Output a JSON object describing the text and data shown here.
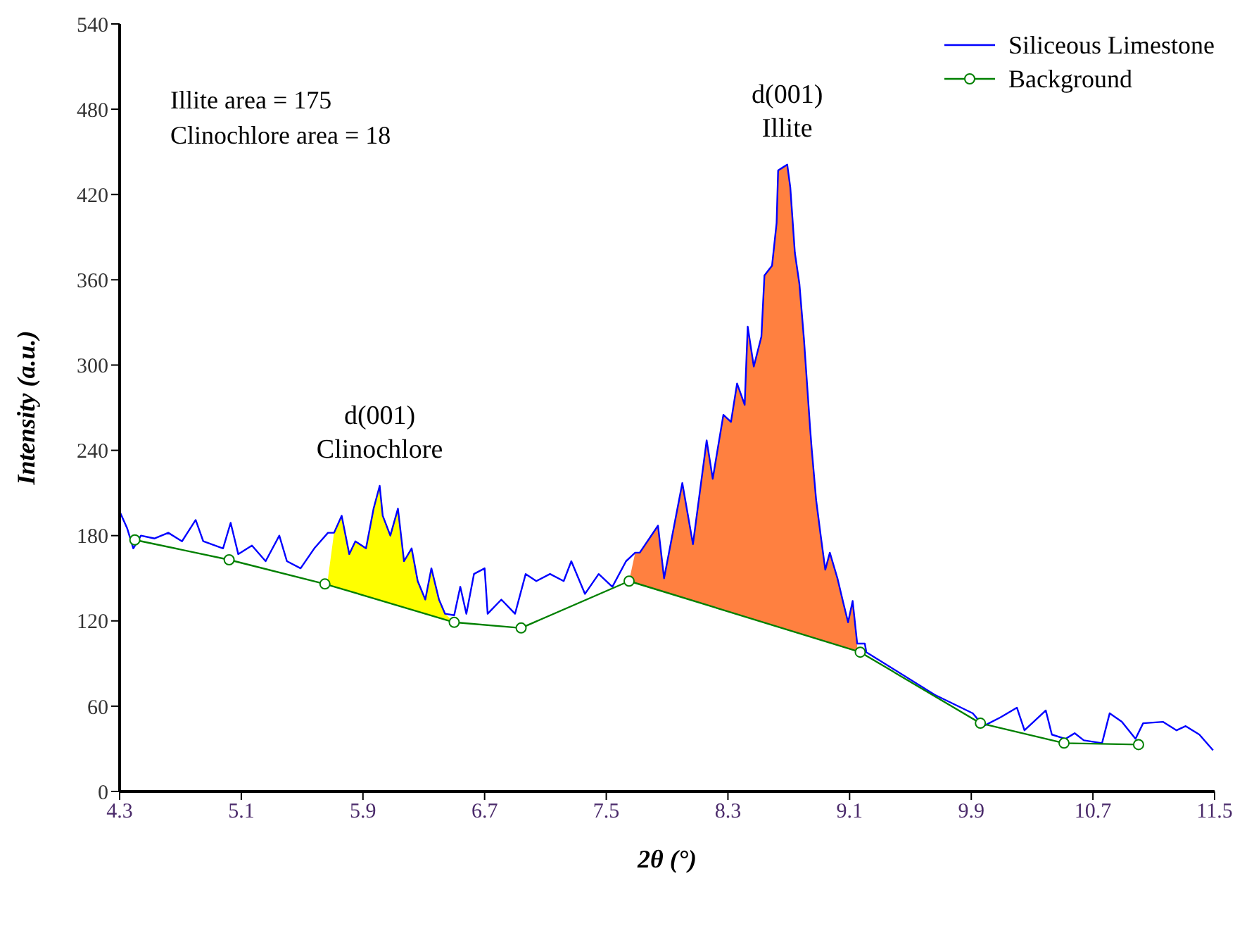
{
  "chart_data": {
    "type": "line",
    "xlabel": "2θ (°)",
    "ylabel": "Intensity (a.u.)",
    "xlim": [
      4.3,
      11.5
    ],
    "xticks": [
      4.3,
      5.1,
      5.9,
      6.7,
      7.5,
      8.3,
      9.1,
      9.9,
      10.7,
      11.5
    ],
    "ylim": [
      0,
      540
    ],
    "yticks": [
      0,
      60,
      120,
      180,
      240,
      300,
      360,
      420,
      480,
      540
    ],
    "legend": "top right",
    "annotations": [
      "Illite area = 175",
      "Clinochlore area = 18",
      {
        "text": "d(001)\nIllite",
        "x": 8.69,
        "y": 441
      },
      {
        "text": "d(001)\nClinochlore",
        "x": 6.01,
        "y": 215
      }
    ],
    "series": [
      {
        "type": "area",
        "color": "#ffff00",
        "x": [
          5.67,
          5.71,
          5.76,
          5.81,
          5.85,
          5.92,
          5.97,
          6.01,
          6.03,
          6.08,
          6.13,
          6.17,
          6.22,
          6.26,
          6.31,
          6.35,
          6.4,
          6.44,
          6.5
        ],
        "values": [
          150,
          182,
          194,
          167,
          176,
          171,
          199,
          215,
          194,
          180,
          199,
          162,
          171,
          148,
          135,
          157,
          135,
          125,
          119
        ]
      },
      {
        "type": "area",
        "color": "#ff8040",
        "x": [
          7.65,
          7.69,
          7.72,
          7.84,
          7.88,
          8.0,
          8.07,
          8.16,
          8.2,
          8.27,
          8.32,
          8.36,
          8.41,
          8.43,
          8.47,
          8.52,
          8.54,
          8.59,
          8.62,
          8.63,
          8.66,
          8.69,
          8.71,
          8.74,
          8.77,
          8.8,
          8.84,
          8.85,
          8.88,
          8.91,
          8.94,
          8.97,
          9.02,
          9.06,
          9.09,
          9.12,
          9.15
        ],
        "values": [
          148,
          168,
          168,
          187,
          150,
          217,
          174,
          247,
          220,
          265,
          260,
          287,
          272,
          327,
          299,
          320,
          363,
          370,
          400,
          437,
          439,
          441,
          425,
          379,
          357,
          318,
          256,
          242,
          205,
          180,
          156,
          168,
          150,
          132,
          119,
          134,
          104
        ]
      },
      {
        "name": "Siliceous Limestone",
        "color": "#0000ff",
        "marker": "none",
        "x": [
          4.3,
          4.35,
          4.39,
          4.44,
          4.53,
          4.62,
          4.71,
          4.8,
          4.85,
          4.98,
          5.03,
          5.08,
          5.17,
          5.26,
          5.35,
          5.4,
          5.49,
          5.58,
          5.67,
          5.71,
          5.76,
          5.81,
          5.85,
          5.92,
          5.97,
          6.01,
          6.03,
          6.08,
          6.13,
          6.17,
          6.22,
          6.26,
          6.31,
          6.35,
          6.4,
          6.44,
          6.5,
          6.54,
          6.58,
          6.63,
          6.7,
          6.72,
          6.81,
          6.9,
          6.97,
          7.04,
          7.13,
          7.22,
          7.27,
          7.36,
          7.45,
          7.54,
          7.63,
          7.69,
          7.72,
          7.84,
          7.88,
          8.0,
          8.07,
          8.16,
          8.2,
          8.27,
          8.32,
          8.36,
          8.41,
          8.43,
          8.47,
          8.52,
          8.54,
          8.59,
          8.62,
          8.63,
          8.66,
          8.69,
          8.71,
          8.74,
          8.77,
          8.8,
          8.84,
          8.85,
          8.88,
          8.91,
          8.94,
          8.97,
          9.02,
          9.06,
          9.09,
          9.12,
          9.15,
          9.2,
          9.21,
          9.66,
          9.91,
          9.98,
          10.09,
          10.2,
          10.25,
          10.39,
          10.43,
          10.52,
          10.58,
          10.64,
          10.76,
          10.81,
          10.89,
          10.98,
          11.03,
          11.16,
          11.25,
          11.31,
          11.4,
          11.49
        ],
        "values": [
          197,
          185,
          171,
          180,
          178,
          182,
          176,
          191,
          176,
          171,
          189,
          167,
          173,
          162,
          180,
          162,
          157,
          171,
          182,
          182,
          194,
          167,
          176,
          171,
          199,
          215,
          194,
          180,
          199,
          162,
          171,
          148,
          135,
          157,
          135,
          125,
          124,
          144,
          125,
          153,
          157,
          125,
          135,
          125,
          153,
          148,
          153,
          148,
          162,
          139,
          153,
          144,
          162,
          168,
          168,
          187,
          150,
          217,
          174,
          247,
          220,
          265,
          260,
          287,
          272,
          327,
          299,
          320,
          363,
          370,
          400,
          437,
          439,
          441,
          425,
          379,
          357,
          318,
          256,
          242,
          205,
          180,
          156,
          168,
          150,
          132,
          119,
          134,
          104,
          104,
          98,
          68,
          55,
          46,
          52,
          59,
          43,
          57,
          40,
          37,
          41,
          36,
          34,
          55,
          49,
          37,
          48,
          49,
          43,
          46,
          40,
          29
        ]
      },
      {
        "name": "Background",
        "color": "#008000",
        "marker": "circle",
        "x": [
          4.4,
          5.02,
          5.65,
          6.5,
          6.94,
          7.65,
          9.17,
          9.96,
          10.51,
          11.0
        ],
        "values": [
          177,
          163,
          146,
          119,
          115,
          148,
          98,
          48,
          34,
          33
        ]
      }
    ]
  }
}
